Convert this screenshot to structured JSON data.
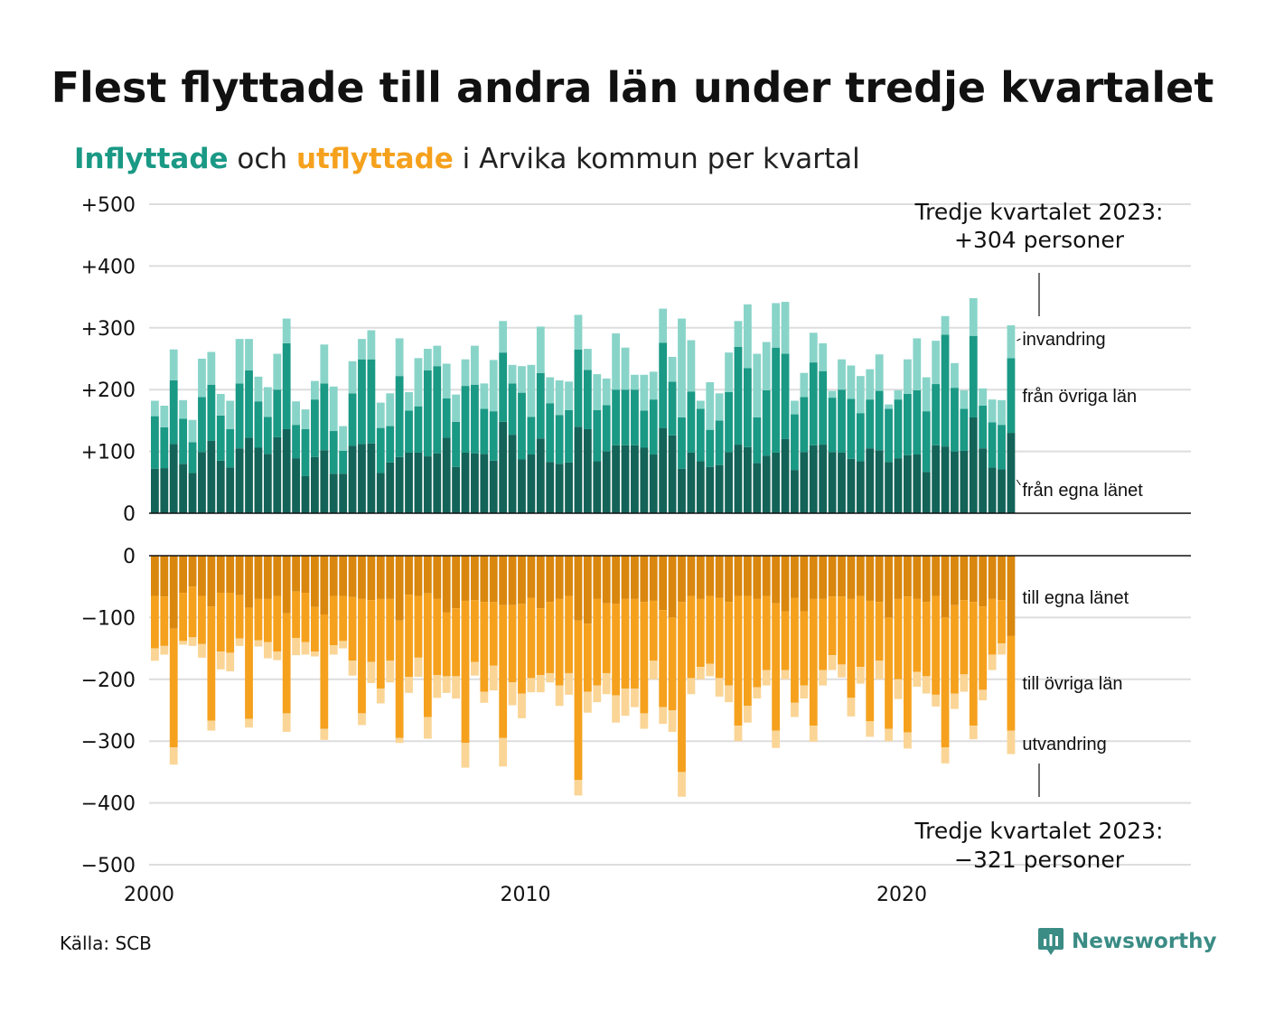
{
  "title": "Flest flyttade till andra län under tredje kvartalet",
  "subtitle": {
    "part1": "Inflyttade",
    "part2": " och ",
    "part3": "utflyttade",
    "part4": " i Arvika kommun per kvartal"
  },
  "source": "Källa: SCB",
  "brand": "Newsworthy",
  "colors": {
    "in_egna": "#136358",
    "in_ovriga": "#1a9985",
    "in_invandring": "#89d4c9",
    "out_egna": "#d9870e",
    "out_ovriga": "#f5a11d",
    "out_utvandring": "#fad596",
    "grid": "#dddddd"
  },
  "chart_data": {
    "type": "bar",
    "stacked": true,
    "grid": true,
    "x_start": 2000,
    "x_step": 0.25,
    "x_ticks": [
      "2000",
      "2010",
      "2020"
    ],
    "top": {
      "ylim": [
        0,
        500
      ],
      "y_ticks": [
        "0",
        "+100",
        "+200",
        "+300",
        "+400",
        "+500"
      ],
      "series": [
        {
          "name": "från egna länet",
          "values": [
            72,
            73,
            112,
            80,
            65,
            99,
            117,
            85,
            74,
            105,
            122,
            106,
            96,
            123,
            136,
            89,
            60,
            91,
            102,
            64,
            64,
            109,
            112,
            113,
            65,
            82,
            91,
            98,
            98,
            92,
            97,
            122,
            75,
            98,
            97,
            96,
            85,
            148,
            127,
            87,
            95,
            121,
            83,
            80,
            82,
            140,
            136,
            84,
            100,
            110,
            110,
            110,
            106,
            95,
            138,
            126,
            72,
            98,
            84,
            75,
            78,
            99,
            111,
            107,
            81,
            93,
            98,
            120,
            70,
            99,
            110,
            111,
            99,
            98,
            88,
            84,
            105,
            102,
            83,
            89,
            94,
            95,
            67,
            110,
            108,
            100,
            101,
            155,
            105,
            74,
            71,
            130
          ]
        },
        {
          "name": "från övriga län",
          "values": [
            85,
            66,
            103,
            73,
            50,
            89,
            91,
            73,
            62,
            105,
            109,
            75,
            60,
            77,
            139,
            54,
            76,
            93,
            108,
            69,
            37,
            85,
            137,
            136,
            73,
            59,
            131,
            68,
            75,
            139,
            141,
            64,
            73,
            108,
            111,
            73,
            80,
            112,
            83,
            108,
            61,
            106,
            95,
            79,
            85,
            125,
            96,
            83,
            75,
            90,
            90,
            90,
            60,
            89,
            138,
            87,
            83,
            99,
            85,
            60,
            72,
            97,
            158,
            128,
            74,
            106,
            170,
            138,
            90,
            89,
            134,
            119,
            88,
            102,
            97,
            78,
            79,
            96,
            86,
            95,
            99,
            104,
            98,
            99,
            181,
            103,
            68,
            132,
            69,
            73,
            72,
            121
          ]
        },
        {
          "name": "invandring",
          "values": [
            25,
            35,
            50,
            30,
            36,
            62,
            53,
            35,
            46,
            72,
            51,
            40,
            48,
            58,
            40,
            38,
            32,
            30,
            63,
            72,
            40,
            52,
            33,
            47,
            41,
            53,
            61,
            30,
            78,
            35,
            33,
            56,
            44,
            43,
            63,
            41,
            83,
            51,
            30,
            43,
            84,
            75,
            42,
            56,
            46,
            56,
            34,
            58,
            43,
            91,
            68,
            24,
            58,
            45,
            55,
            40,
            160,
            83,
            13,
            77,
            44,
            64,
            42,
            103,
            103,
            78,
            72,
            84,
            22,
            39,
            48,
            45,
            11,
            49,
            54,
            60,
            49,
            59,
            7,
            15,
            56,
            84,
            55,
            70,
            30,
            40,
            30,
            61,
            28,
            37,
            40,
            53
          ]
        }
      ]
    },
    "bottom": {
      "ylim": [
        -500,
        0
      ],
      "y_ticks": [
        "0",
        "−100",
        "−200",
        "−300",
        "−400",
        "−500"
      ],
      "series": [
        {
          "name": "till egna länet",
          "values": [
            -65,
            -66,
            -118,
            -60,
            -50,
            -65,
            -82,
            -60,
            -60,
            -64,
            -84,
            -70,
            -70,
            -65,
            -93,
            -58,
            -60,
            -83,
            -95,
            -65,
            -65,
            -67,
            -70,
            -72,
            -70,
            -70,
            -105,
            -63,
            -65,
            -61,
            -70,
            -92,
            -85,
            -73,
            -72,
            -75,
            -75,
            -80,
            -80,
            -78,
            -68,
            -85,
            -75,
            -70,
            -65,
            -105,
            -110,
            -70,
            -77,
            -78,
            -70,
            -70,
            -75,
            -73,
            -88,
            -100,
            -75,
            -65,
            -70,
            -65,
            -68,
            -75,
            -65,
            -65,
            -70,
            -65,
            -77,
            -90,
            -68,
            -90,
            -70,
            -70,
            -66,
            -66,
            -70,
            -65,
            -73,
            -75,
            -100,
            -70,
            -66,
            -70,
            -75,
            -65,
            -100,
            -80,
            -72,
            -75,
            -82,
            -70,
            -72,
            -130
          ]
        },
        {
          "name": "till övriga län",
          "values": [
            -85,
            -80,
            -192,
            -78,
            -82,
            -78,
            -185,
            -95,
            -97,
            -70,
            -180,
            -67,
            -70,
            -90,
            -162,
            -75,
            -80,
            -72,
            -185,
            -80,
            -73,
            -103,
            -185,
            -100,
            -145,
            -100,
            -190,
            -133,
            -100,
            -200,
            -123,
            -103,
            -110,
            -230,
            -100,
            -145,
            -103,
            -215,
            -125,
            -145,
            -130,
            -108,
            -115,
            -140,
            -125,
            -258,
            -110,
            -140,
            -113,
            -148,
            -145,
            -145,
            -180,
            -97,
            -157,
            -150,
            -275,
            -133,
            -110,
            -110,
            -130,
            -135,
            -210,
            -178,
            -143,
            -120,
            -206,
            -95,
            -170,
            -120,
            -205,
            -115,
            -95,
            -110,
            -160,
            -115,
            -195,
            -95,
            -180,
            -130,
            -220,
            -118,
            -120,
            -160,
            -210,
            -143,
            -120,
            -200,
            -135,
            -90,
            -70,
            -153
          ]
        },
        {
          "name": "utvandring",
          "values": [
            -20,
            -14,
            -28,
            -6,
            -14,
            -22,
            -16,
            -29,
            -30,
            -12,
            -14,
            -10,
            -26,
            -14,
            -30,
            -28,
            -20,
            -8,
            -18,
            -15,
            -12,
            -24,
            -19,
            -34,
            -24,
            -35,
            -8,
            -26,
            -31,
            -35,
            -37,
            -27,
            -36,
            -40,
            -22,
            -18,
            -40,
            -46,
            -37,
            -40,
            -23,
            -28,
            -15,
            -33,
            -35,
            -25,
            -34,
            -27,
            -34,
            -44,
            -44,
            -30,
            -25,
            -30,
            -27,
            -35,
            -40,
            -26,
            -20,
            -20,
            -30,
            -27,
            -25,
            -27,
            -18,
            -25,
            -28,
            -15,
            -23,
            -21,
            -26,
            -25,
            -24,
            -21,
            -30,
            -27,
            -25,
            -30,
            -20,
            -32,
            -26,
            -24,
            -28,
            -19,
            -26,
            -25,
            -28,
            -22,
            -17,
            -25,
            -18,
            -38
          ]
        }
      ]
    },
    "annotations": {
      "top_title": "Tredje kvartalet 2023:",
      "top_value": "+304 personer",
      "bottom_title": "Tredje kvartalet 2023:",
      "bottom_value": "−321 personer"
    }
  }
}
